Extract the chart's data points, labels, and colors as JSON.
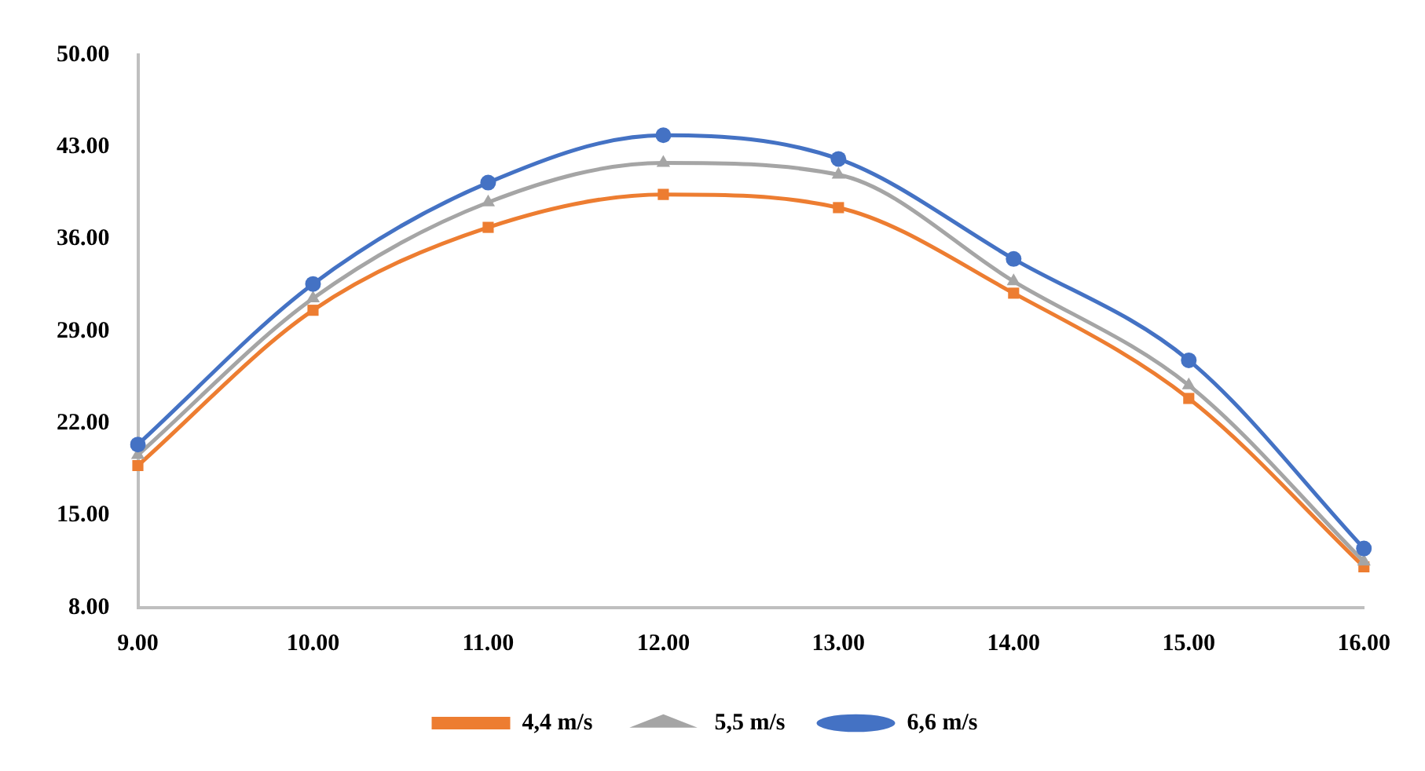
{
  "chart_data": {
    "type": "line",
    "categories": [
      "9.00",
      "10.00",
      "11.00",
      "12.00",
      "13.00",
      "14.00",
      "15.00",
      "16.00"
    ],
    "series": [
      {
        "name": "4,4 m/s",
        "color": "#ed7d31",
        "marker": "square",
        "values": [
          18.8,
          30.6,
          36.9,
          39.4,
          38.4,
          31.9,
          23.9,
          11.1
        ]
      },
      {
        "name": "5,5 m/s",
        "color": "#a5a5a5",
        "marker": "triangle",
        "values": [
          19.6,
          31.5,
          38.8,
          41.8,
          40.9,
          32.8,
          24.9,
          11.5
        ]
      },
      {
        "name": "6,6 m/s",
        "color": "#4472c4",
        "marker": "circle",
        "values": [
          20.4,
          32.6,
          40.3,
          43.9,
          42.1,
          34.5,
          26.8,
          12.5
        ]
      }
    ],
    "ylim": [
      8,
      50
    ],
    "yticks": [
      {
        "value": 8,
        "label": "8.00"
      },
      {
        "value": 15,
        "label": "15.00"
      },
      {
        "value": 22,
        "label": "22.00"
      },
      {
        "value": 29,
        "label": "29.00"
      },
      {
        "value": 36,
        "label": "36.00"
      },
      {
        "value": 43,
        "label": "43.00"
      },
      {
        "value": 50,
        "label": "50.00"
      }
    ],
    "grid": false,
    "legend": "bottom"
  }
}
